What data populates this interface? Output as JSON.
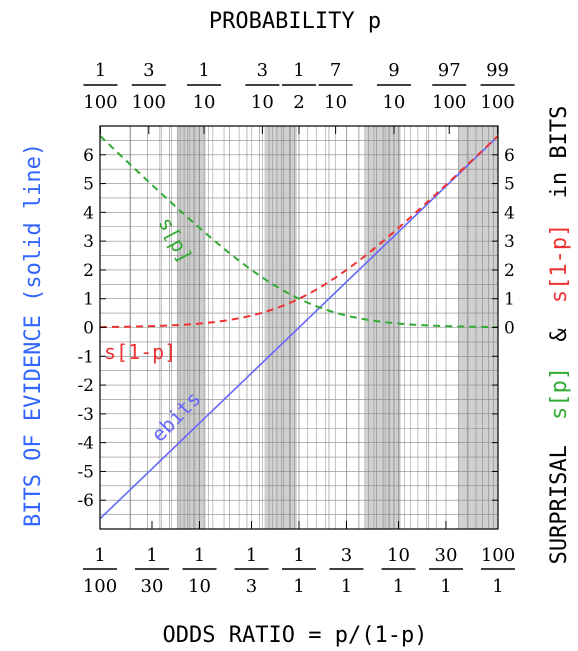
{
  "chart_data": {
    "type": "line",
    "title": "PROBABILITY p",
    "xlabel": "ODDS RATIO = p/(1-p)",
    "ylabel_left": "BITS OF EVIDENCE (solid line)",
    "ylabel_right": {
      "prefix": "SURPRISAL",
      "s_p": "s[p]",
      "amp": "&",
      "s_1mp": "s[1-p]",
      "suffix": "in BITS"
    },
    "x_scale": "log10",
    "xlim": [
      0.01,
      100
    ],
    "ylim": [
      -7,
      7
    ],
    "grid": true,
    "top_ticks": [
      {
        "num": "1",
        "den": "100",
        "p": 0.01
      },
      {
        "num": "3",
        "den": "100",
        "p": 0.03
      },
      {
        "num": "1",
        "den": "10",
        "p": 0.1
      },
      {
        "num": "3",
        "den": "10",
        "p": 0.3
      },
      {
        "num": "1",
        "den": "2",
        "p": 0.5
      },
      {
        "num": "7",
        "den": "10",
        "p": 0.7
      },
      {
        "num": "9",
        "den": "10",
        "p": 0.9
      },
      {
        "num": "97",
        "den": "100",
        "p": 0.97
      },
      {
        "num": "99",
        "den": "100",
        "p": 0.99
      }
    ],
    "bottom_ticks": [
      {
        "num": "1",
        "den": "100",
        "odds": 0.01
      },
      {
        "num": "1",
        "den": "30",
        "odds": 0.0333
      },
      {
        "num": "1",
        "den": "10",
        "odds": 0.1
      },
      {
        "num": "1",
        "den": "3",
        "odds": 0.3333
      },
      {
        "num": "1",
        "den": "1",
        "odds": 1
      },
      {
        "num": "3",
        "den": "1",
        "odds": 3
      },
      {
        "num": "10",
        "den": "1",
        "odds": 10
      },
      {
        "num": "30",
        "den": "1",
        "odds": 30
      },
      {
        "num": "100",
        "den": "1",
        "odds": 100
      }
    ],
    "y_ticks": [
      "6",
      "5",
      "4",
      "3",
      "2",
      "1",
      "0",
      "-1",
      "-2",
      "-3",
      "-4",
      "-5",
      "-6"
    ],
    "series": [
      {
        "name": "ebits",
        "style": "solid",
        "color": "#6666ff",
        "function": "log2(odds)"
      },
      {
        "name": "s[p]",
        "style": "dashed",
        "color": "#33aa33",
        "function": "log2(1 + 1/odds)"
      },
      {
        "name": "s[1-p]",
        "style": "dashed",
        "color": "#ee3333",
        "function": "log2(1 + odds)"
      }
    ],
    "annotations": [
      {
        "text": "s[p]",
        "color": "#33aa33"
      },
      {
        "text": "s[1-p]",
        "color": "#ee3333"
      },
      {
        "text": "ebits",
        "color": "#6666ff"
      }
    ]
  },
  "colors": {
    "left_axis_label": "#3366ff",
    "green": "#33aa33",
    "red": "#ee3333",
    "blue": "#6666ff",
    "grid": "#888888",
    "shade": "#d0d0d0"
  }
}
